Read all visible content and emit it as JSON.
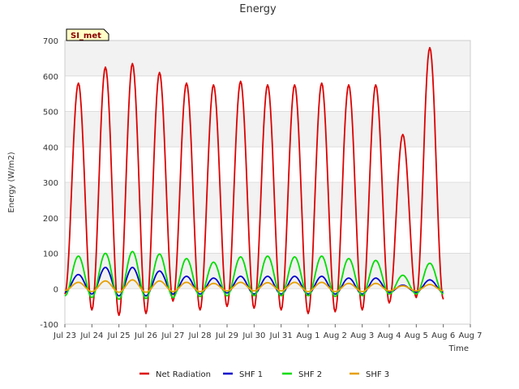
{
  "chart_data": {
    "type": "line",
    "title": "Energy",
    "xlabel": "Time",
    "ylabel": "Energy (W/m2)",
    "ylim": [
      -100,
      700
    ],
    "y_ticks": [
      -100,
      0,
      100,
      200,
      300,
      400,
      500,
      600,
      700
    ],
    "xlim_days": [
      0,
      15
    ],
    "x_tick_labels": [
      "Jul 23",
      "Jul 24",
      "Jul 25",
      "Jul 26",
      "Jul 27",
      "Jul 28",
      "Jul 29",
      "Jul 30",
      "Jul 31",
      "Aug 1",
      "Aug 2",
      "Aug 3",
      "Aug 4",
      "Aug 5",
      "Aug 6",
      "Aug 7"
    ],
    "grid": true,
    "legend_placement": "bottom-center",
    "badge": "SI_met",
    "series": [
      {
        "name": "Net Radiation",
        "color": "#dd0000",
        "x": [
          "Jul 23",
          "Jul 23 12:00",
          "Jul 24",
          "Jul 24 12:00",
          "Jul 25",
          "Jul 25 12:00",
          "Jul 26",
          "Jul 26 12:00",
          "Jul 27",
          "Jul 27 12:00",
          "Jul 28",
          "Jul 28 12:00",
          "Jul 29",
          "Jul 29 12:00",
          "Jul 30",
          "Jul 30 12:00",
          "Jul 31",
          "Jul 31 12:00",
          "Aug 1",
          "Aug 1 12:00",
          "Aug 2",
          "Aug 2 12:00",
          "Aug 3",
          "Aug 3 12:00",
          "Aug 4",
          "Aug 4 12:00",
          "Aug 5",
          "Aug 5 12:00",
          "Aug 6"
        ],
        "y": [
          -15,
          580,
          -60,
          625,
          -75,
          635,
          -70,
          610,
          -35,
          580,
          -60,
          575,
          -50,
          585,
          -55,
          575,
          -60,
          575,
          -70,
          580,
          -65,
          575,
          -60,
          575,
          -40,
          435,
          -25,
          680,
          -30
        ]
      },
      {
        "name": "SHF 1",
        "color": "#0000cc",
        "x": [
          "Jul 23",
          "Jul 23 12:00",
          "Jul 24",
          "Jul 24 12:00",
          "Jul 25",
          "Jul 25 12:00",
          "Jul 26",
          "Jul 26 12:00",
          "Jul 27",
          "Jul 27 12:00",
          "Jul 28",
          "Jul 28 12:00",
          "Jul 29",
          "Jul 29 12:00",
          "Jul 30",
          "Jul 30 12:00",
          "Jul 31",
          "Jul 31 12:00",
          "Aug 1",
          "Aug 1 12:00",
          "Aug 2",
          "Aug 2 12:00",
          "Aug 3",
          "Aug 3 12:00",
          "Aug 4",
          "Aug 4 12:00",
          "Aug 5",
          "Aug 5 12:00",
          "Aug 6"
        ],
        "y": [
          -10,
          40,
          -15,
          60,
          -20,
          60,
          -20,
          50,
          -15,
          35,
          -15,
          30,
          -12,
          35,
          -15,
          35,
          -15,
          35,
          -15,
          35,
          -15,
          30,
          -15,
          30,
          -10,
          10,
          -10,
          25,
          -10
        ]
      },
      {
        "name": "SHF 2",
        "color": "#00dd00",
        "x": [
          "Jul 23",
          "Jul 23 12:00",
          "Jul 24",
          "Jul 24 12:00",
          "Jul 25",
          "Jul 25 12:00",
          "Jul 26",
          "Jul 26 12:00",
          "Jul 27",
          "Jul 27 12:00",
          "Jul 28",
          "Jul 28 12:00",
          "Jul 29",
          "Jul 29 12:00",
          "Jul 30",
          "Jul 30 12:00",
          "Jul 31",
          "Jul 31 12:00",
          "Aug 1",
          "Aug 1 12:00",
          "Aug 2",
          "Aug 2 12:00",
          "Aug 3",
          "Aug 3 12:00",
          "Aug 4",
          "Aug 4 12:00",
          "Aug 5",
          "Aug 5 12:00",
          "Aug 6"
        ],
        "y": [
          -20,
          92,
          -25,
          100,
          -30,
          105,
          -28,
          98,
          -25,
          85,
          -22,
          75,
          -20,
          90,
          -20,
          92,
          -20,
          90,
          -20,
          92,
          -22,
          85,
          -20,
          80,
          -15,
          38,
          -15,
          72,
          -15
        ]
      },
      {
        "name": "SHF 3",
        "color": "#e6a000",
        "x": [
          "Jul 23",
          "Jul 23 12:00",
          "Jul 24",
          "Jul 24 12:00",
          "Jul 25",
          "Jul 25 12:00",
          "Jul 26",
          "Jul 26 12:00",
          "Jul 27",
          "Jul 27 12:00",
          "Jul 28",
          "Jul 28 12:00",
          "Jul 29",
          "Jul 29 12:00",
          "Jul 30",
          "Jul 30 12:00",
          "Jul 31",
          "Jul 31 12:00",
          "Aug 1",
          "Aug 1 12:00",
          "Aug 2",
          "Aug 2 12:00",
          "Aug 3",
          "Aug 3 12:00",
          "Aug 4",
          "Aug 4 12:00",
          "Aug 5",
          "Aug 5 12:00",
          "Aug 6"
        ],
        "y": [
          -5,
          18,
          -8,
          22,
          -10,
          25,
          -10,
          22,
          -8,
          18,
          -8,
          15,
          -6,
          18,
          -6,
          17,
          -6,
          18,
          -8,
          18,
          -8,
          15,
          -8,
          15,
          -6,
          8,
          -6,
          12,
          -6
        ]
      }
    ]
  }
}
